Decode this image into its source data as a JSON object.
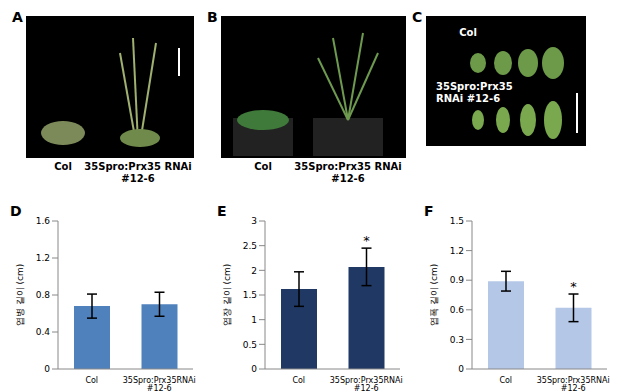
{
  "photos": [
    {
      "panel": "A",
      "captions": [
        [
          "Col"
        ],
        [
          "35Spro:Prx35  RNAi",
          "#12-6"
        ]
      ]
    },
    {
      "panel": "B",
      "captions": [
        [
          "Col"
        ],
        [
          "35Spro:Prx35  RNAi",
          "#12-6"
        ]
      ]
    },
    {
      "panel": "C",
      "captions": [
        [
          "Col"
        ],
        [
          "35Spro:Prx35",
          "RNAi #12-6"
        ]
      ]
    }
  ],
  "chart_data": [
    {
      "type": "bar",
      "title": "D",
      "y_label": "엽병 길이 (cm)",
      "categories": [
        "Col",
        "35Spro:Prx35RNAi #12-6"
      ],
      "values": [
        0.68,
        0.7
      ],
      "errors": [
        0.13,
        0.13
      ],
      "significance": [
        null,
        null
      ],
      "color": "#4f81bd",
      "ylim": [
        0,
        1.6
      ],
      "yticks": [
        0,
        0.4,
        0.8,
        1.2,
        1.6
      ]
    },
    {
      "type": "bar",
      "title": "E",
      "y_label": "엽장 길이 (cm)",
      "categories": [
        "Col",
        "35Spro:Prx35RNAi #12-6"
      ],
      "values": [
        1.62,
        2.07
      ],
      "errors": [
        0.35,
        0.38
      ],
      "significance": [
        null,
        "*"
      ],
      "color": "#1f3864",
      "ylim": [
        0,
        3
      ],
      "yticks": [
        0,
        0.5,
        1,
        1.5,
        2,
        2.5,
        3
      ]
    },
    {
      "type": "bar",
      "title": "F",
      "y_label": "엽폭 길이 (cm)",
      "categories": [
        "Col",
        "35Spro:Prx35RNAi #12-6"
      ],
      "values": [
        0.89,
        0.62
      ],
      "errors": [
        0.1,
        0.14
      ],
      "significance": [
        null,
        "*"
      ],
      "color": "#b4c7e7",
      "ylim": [
        0,
        1.5
      ],
      "yticks": [
        0,
        0.3,
        0.6,
        0.9,
        1.2,
        1.5
      ]
    }
  ]
}
